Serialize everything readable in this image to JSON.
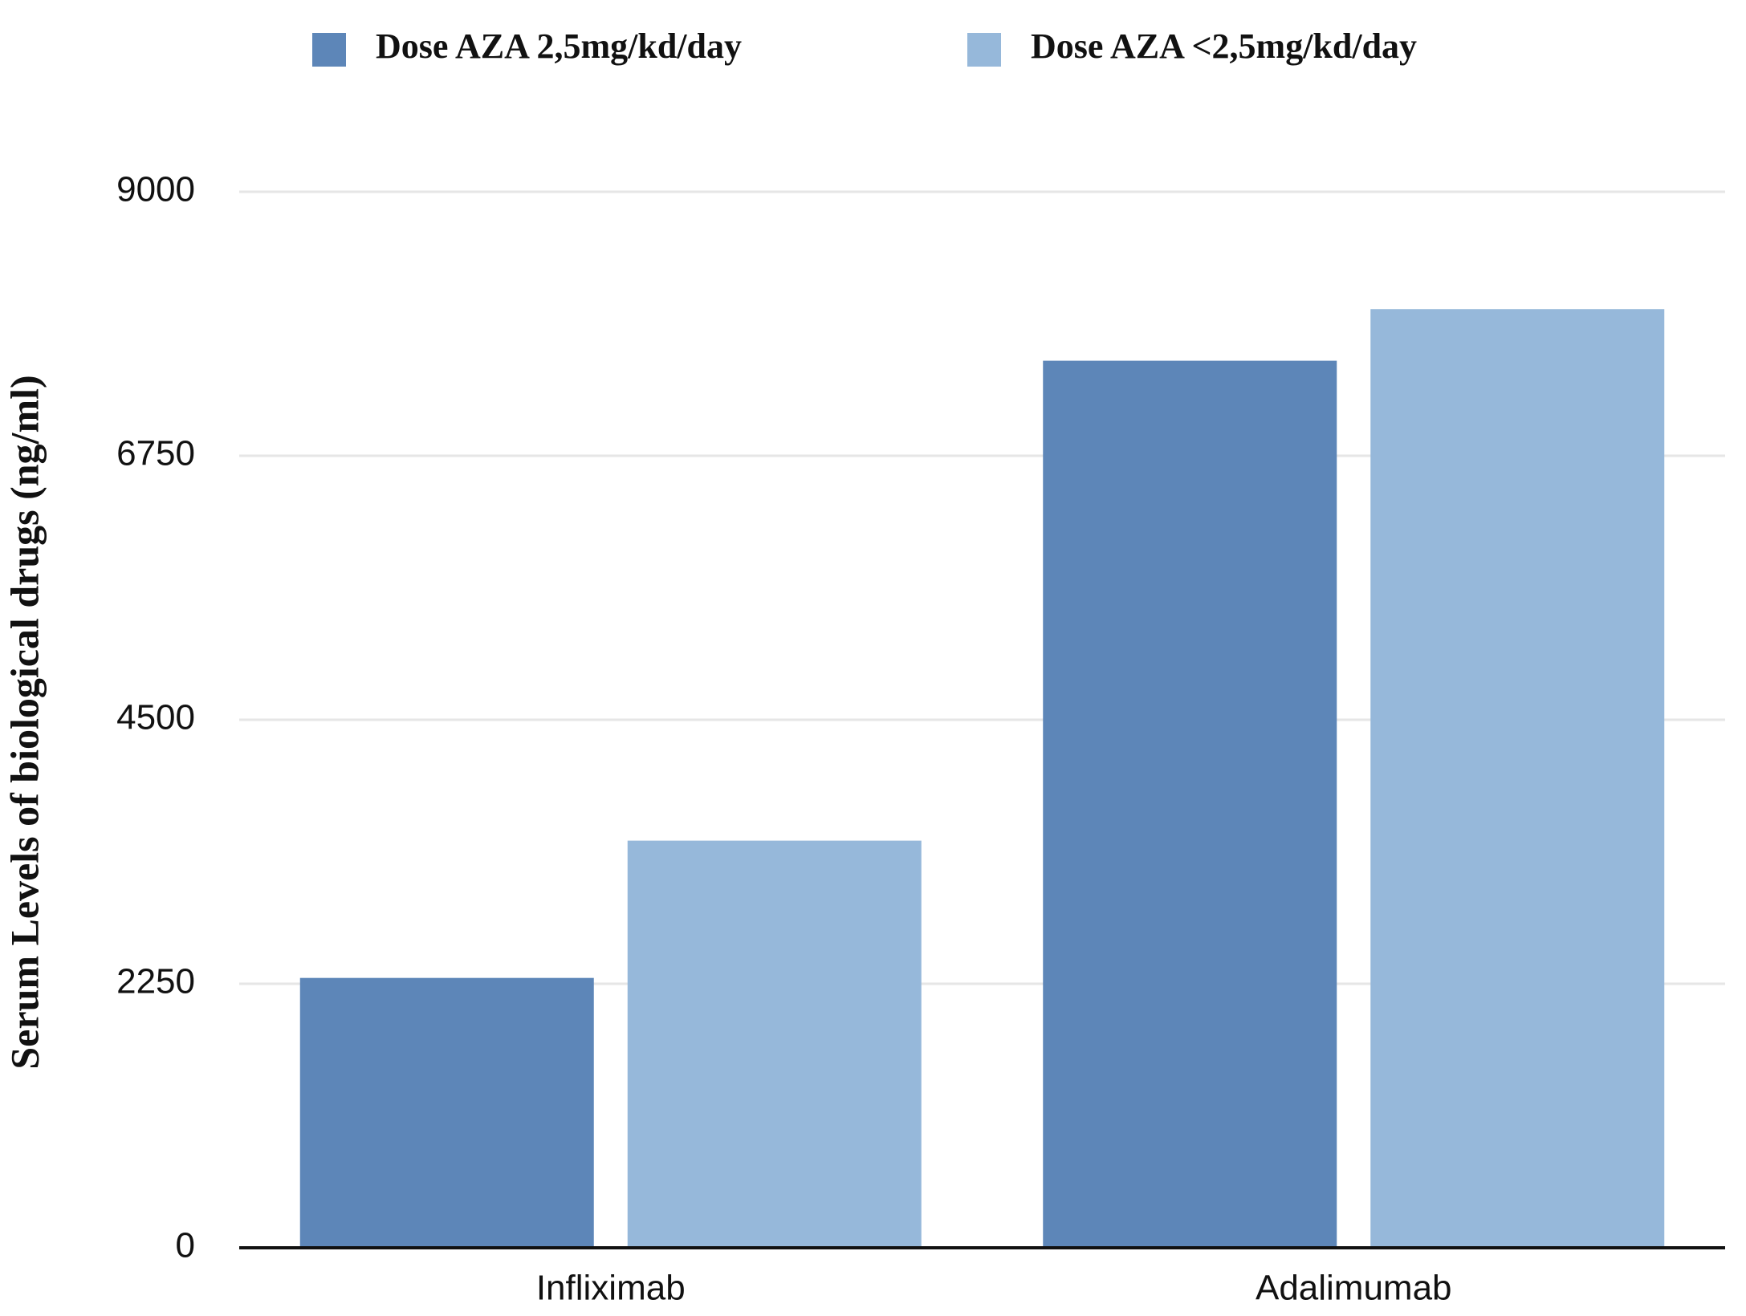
{
  "chart_data": {
    "type": "bar",
    "y_label": "Serum Levels of biological drugs (ng/ml)",
    "categories": [
      "Infliximab",
      "Adalimumab"
    ],
    "series": [
      {
        "name": "Dose AZA 2,5mg/kd/day",
        "color": "#5d86b8",
        "values": [
          2300,
          7560
        ]
      },
      {
        "name": "Dose AZA <2,5mg/kd/day",
        "color": "#96b8da",
        "values": [
          3470,
          8000
        ]
      }
    ],
    "ylim": [
      0,
      9000
    ],
    "yticks": [
      0,
      2250,
      4500,
      6750,
      9000
    ],
    "grid": true,
    "legend": "top"
  }
}
